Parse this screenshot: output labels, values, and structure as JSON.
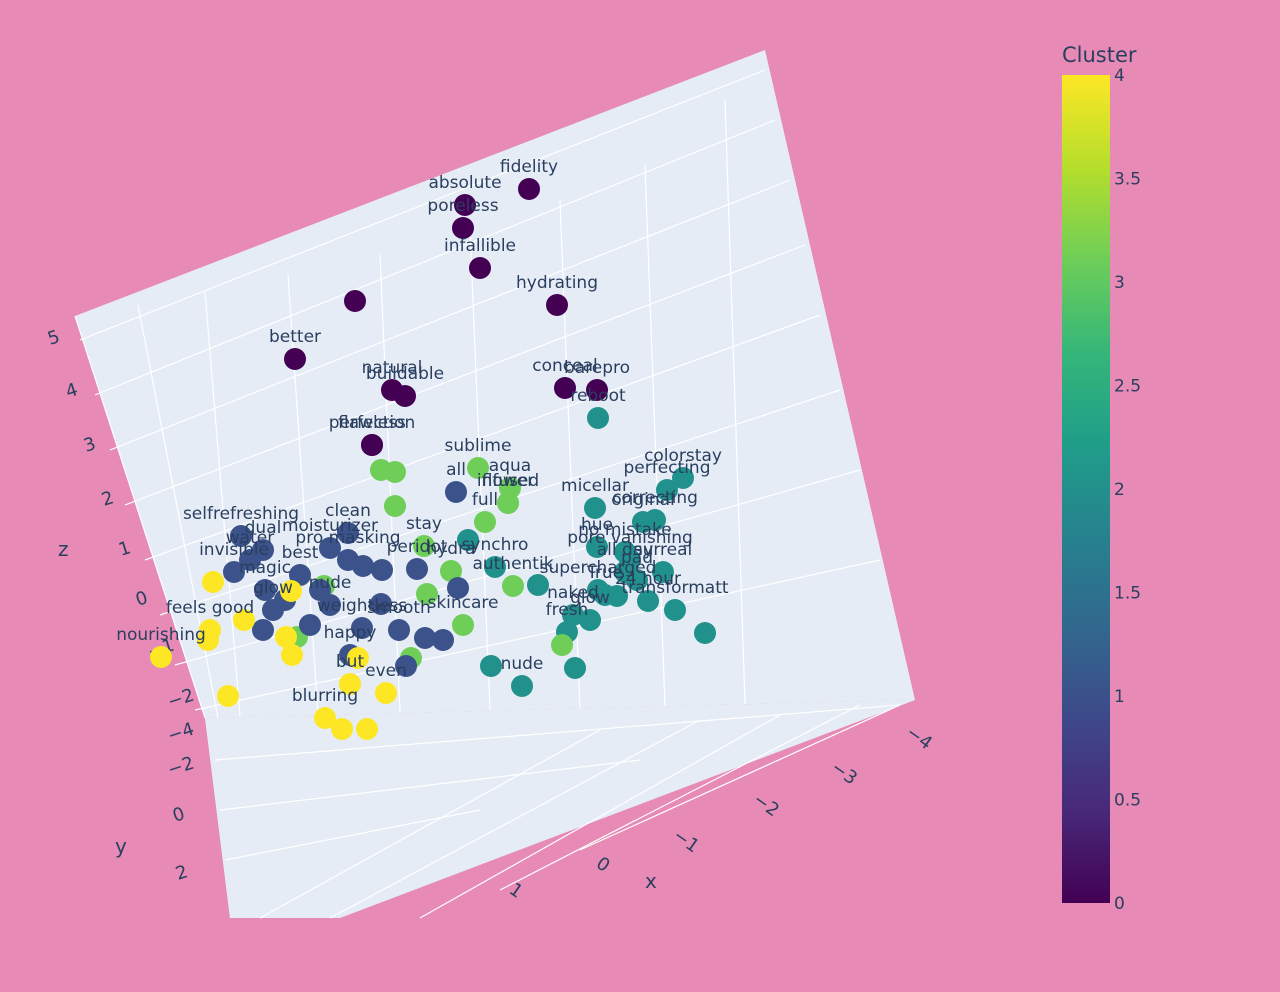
{
  "chart_data": {
    "type": "scatter3d",
    "axes": {
      "x": {
        "title": "x",
        "ticks": [
          "−4",
          "−3",
          "−2",
          "−1",
          "0",
          "1"
        ]
      },
      "y": {
        "title": "y",
        "ticks": [
          "−4",
          "−2",
          "0",
          "2"
        ]
      },
      "z": {
        "title": "z",
        "ticks": [
          "5",
          "4",
          "3",
          "2",
          "1",
          "0",
          "−1",
          "−2"
        ]
      }
    },
    "colorbar": {
      "title": "Cluster",
      "range": [
        0,
        4
      ],
      "ticks": [
        "4",
        "3.5",
        "3",
        "2.5",
        "2",
        "1.5",
        "1",
        "0.5",
        "0"
      ],
      "colorscale": [
        "#440154",
        "#482878",
        "#3e4989",
        "#31688e",
        "#26828e",
        "#1f9e89",
        "#35b779",
        "#6ece58",
        "#b5de2b",
        "#fde725"
      ]
    },
    "points": [
      {
        "label": "fidelity",
        "cluster": 0,
        "sx": 529,
        "sy": 189
      },
      {
        "label": "absolute",
        "cluster": 0,
        "sx": 465,
        "sy": 205
      },
      {
        "label": "poreless",
        "cluster": 0,
        "sx": 463,
        "sy": 228
      },
      {
        "label": "infallible",
        "cluster": 0,
        "sx": 480,
        "sy": 268
      },
      {
        "label": "hydrating",
        "cluster": 0,
        "sx": 557,
        "sy": 305
      },
      {
        "label": "",
        "cluster": 0,
        "sx": 355,
        "sy": 301
      },
      {
        "label": "better",
        "cluster": 0,
        "sx": 295,
        "sy": 359
      },
      {
        "label": "natural",
        "cluster": 0,
        "sx": 392,
        "sy": 390
      },
      {
        "label": "buildable",
        "cluster": 0,
        "sx": 405,
        "sy": 396
      },
      {
        "label": "conceal",
        "cluster": 0,
        "sx": 565,
        "sy": 388
      },
      {
        "label": "barepro",
        "cluster": 0,
        "sx": 597,
        "sy": 390
      },
      {
        "label": "flawless",
        "cluster": 0,
        "sx": 372,
        "sy": 445
      },
      {
        "label": "perfection",
        "cluster": 0,
        "sx": 372,
        "sy": 445
      },
      {
        "label": "reboot",
        "cluster": 2,
        "sx": 598,
        "sy": 418
      },
      {
        "label": "colorstay",
        "cluster": 2,
        "sx": 683,
        "sy": 478
      },
      {
        "label": "micellar",
        "cluster": 2,
        "sx": 595,
        "sy": 508
      },
      {
        "label": "perfecting",
        "cluster": 2,
        "sx": 667,
        "sy": 490
      },
      {
        "label": "correcting",
        "cluster": 2,
        "sx": 655,
        "sy": 520
      },
      {
        "label": "hue",
        "cluster": 2,
        "sx": 597,
        "sy": 547
      },
      {
        "label": "original",
        "cluster": 2,
        "sx": 643,
        "sy": 522
      },
      {
        "label": "no mistake",
        "cluster": 2,
        "sx": 625,
        "sy": 552
      },
      {
        "label": "pore vanishing",
        "cluster": 2,
        "sx": 630,
        "sy": 560
      },
      {
        "label": "surreal",
        "cluster": 2,
        "sx": 663,
        "sy": 572
      },
      {
        "label": "all day",
        "cluster": 2,
        "sx": 625,
        "sy": 572
      },
      {
        "label": "pad",
        "cluster": 2,
        "sx": 637,
        "sy": 580
      },
      {
        "label": "supercharged",
        "cluster": 2,
        "sx": 598,
        "sy": 590
      },
      {
        "label": "24 hour",
        "cluster": 2,
        "sx": 648,
        "sy": 601
      },
      {
        "label": "True",
        "cluster": 2,
        "sx": 605,
        "sy": 595
      },
      {
        "label": "glow",
        "cluster": 2,
        "sx": 590,
        "sy": 620
      },
      {
        "label": "naked",
        "cluster": 2,
        "sx": 573,
        "sy": 615
      },
      {
        "label": "fresh",
        "cluster": 2,
        "sx": 567,
        "sy": 632
      },
      {
        "label": "transformatt",
        "cluster": 2,
        "sx": 675,
        "sy": 610
      },
      {
        "label": "",
        "cluster": 2,
        "sx": 705,
        "sy": 633
      },
      {
        "label": "synchro",
        "cluster": 2,
        "sx": 495,
        "sy": 567
      },
      {
        "label": "",
        "cluster": 2,
        "sx": 538,
        "sy": 585
      },
      {
        "label": "nude",
        "cluster": 2,
        "sx": 522,
        "sy": 686
      },
      {
        "label": "",
        "cluster": 2,
        "sx": 491,
        "sy": 666
      },
      {
        "label": "",
        "cluster": 2,
        "sx": 575,
        "sy": 668
      },
      {
        "label": "",
        "cluster": 2,
        "sx": 617,
        "sy": 596
      },
      {
        "label": "",
        "cluster": 2,
        "sx": 468,
        "sy": 540
      },
      {
        "label": "sublime",
        "cluster": 3,
        "sx": 478,
        "sy": 468
      },
      {
        "label": "aqua",
        "cluster": 3,
        "sx": 510,
        "sy": 488
      },
      {
        "label": "flower",
        "cluster": 3,
        "sx": 508,
        "sy": 503
      },
      {
        "label": "infused",
        "cluster": 3,
        "sx": 508,
        "sy": 503
      },
      {
        "label": "",
        "cluster": 3,
        "sx": 381,
        "sy": 470
      },
      {
        "label": "",
        "cluster": 3,
        "sx": 395,
        "sy": 472
      },
      {
        "label": "",
        "cluster": 3,
        "sx": 395,
        "sy": 506
      },
      {
        "label": "full",
        "cluster": 3,
        "sx": 485,
        "sy": 522
      },
      {
        "label": "stay",
        "cluster": 3,
        "sx": 424,
        "sy": 546
      },
      {
        "label": "hydra",
        "cluster": 3,
        "sx": 451,
        "sy": 571
      },
      {
        "label": "authentik",
        "cluster": 3,
        "sx": 513,
        "sy": 586
      },
      {
        "label": "",
        "cluster": 3,
        "sx": 427,
        "sy": 594
      },
      {
        "label": "skincare",
        "cluster": 3,
        "sx": 463,
        "sy": 625
      },
      {
        "label": "",
        "cluster": 3,
        "sx": 562,
        "sy": 645
      },
      {
        "label": "",
        "cluster": 3,
        "sx": 411,
        "sy": 658
      },
      {
        "label": "",
        "cluster": 3,
        "sx": 324,
        "sy": 586
      },
      {
        "label": "",
        "cluster": 3,
        "sx": 297,
        "sy": 637
      },
      {
        "label": "all",
        "cluster": 1,
        "sx": 456,
        "sy": 492
      },
      {
        "label": "selfrefreshing",
        "cluster": 1,
        "sx": 241,
        "sy": 536
      },
      {
        "label": "clean",
        "cluster": 1,
        "sx": 348,
        "sy": 533
      },
      {
        "label": "moisturizer",
        "cluster": 1,
        "sx": 330,
        "sy": 548
      },
      {
        "label": "dual",
        "cluster": 1,
        "sx": 263,
        "sy": 550
      },
      {
        "label": "pro masking",
        "cluster": 1,
        "sx": 348,
        "sy": 560
      },
      {
        "label": "invisible",
        "cluster": 1,
        "sx": 234,
        "sy": 572
      },
      {
        "label": "water",
        "cluster": 1,
        "sx": 250,
        "sy": 560
      },
      {
        "label": "best",
        "cluster": 1,
        "sx": 300,
        "sy": 575
      },
      {
        "label": "peridot",
        "cluster": 1,
        "sx": 417,
        "sy": 569
      },
      {
        "label": "",
        "cluster": 1,
        "sx": 382,
        "sy": 570
      },
      {
        "label": "",
        "cluster": 1,
        "sx": 363,
        "sy": 566
      },
      {
        "label": "magic",
        "cluster": 1,
        "sx": 265,
        "sy": 590
      },
      {
        "label": "glow",
        "cluster": 1,
        "sx": 273,
        "sy": 610
      },
      {
        "label": "nude",
        "cluster": 1,
        "sx": 330,
        "sy": 605
      },
      {
        "label": "",
        "cluster": 1,
        "sx": 458,
        "sy": 588
      },
      {
        "label": "",
        "cluster": 1,
        "sx": 381,
        "sy": 604
      },
      {
        "label": "smooth",
        "cluster": 1,
        "sx": 399,
        "sy": 630
      },
      {
        "label": "weightless",
        "cluster": 1,
        "sx": 362,
        "sy": 628
      },
      {
        "label": "",
        "cluster": 1,
        "sx": 425,
        "sy": 638
      },
      {
        "label": "",
        "cluster": 1,
        "sx": 443,
        "sy": 640
      },
      {
        "label": "",
        "cluster": 1,
        "sx": 263,
        "sy": 630
      },
      {
        "label": "",
        "cluster": 1,
        "sx": 310,
        "sy": 625
      },
      {
        "label": "happy",
        "cluster": 1,
        "sx": 350,
        "sy": 655
      },
      {
        "label": "",
        "cluster": 1,
        "sx": 406,
        "sy": 666
      },
      {
        "label": "",
        "cluster": 1,
        "sx": 285,
        "sy": 600
      },
      {
        "label": "",
        "cluster": 1,
        "sx": 320,
        "sy": 590
      },
      {
        "label": "nourishing",
        "cluster": 4,
        "sx": 161,
        "sy": 657
      },
      {
        "label": "feels good",
        "cluster": 4,
        "sx": 210,
        "sy": 630
      },
      {
        "label": "",
        "cluster": 4,
        "sx": 208,
        "sy": 640
      },
      {
        "label": "",
        "cluster": 4,
        "sx": 213,
        "sy": 582
      },
      {
        "label": "",
        "cluster": 4,
        "sx": 244,
        "sy": 620
      },
      {
        "label": "",
        "cluster": 4,
        "sx": 291,
        "sy": 591
      },
      {
        "label": "",
        "cluster": 4,
        "sx": 286,
        "sy": 637
      },
      {
        "label": "",
        "cluster": 4,
        "sx": 292,
        "sy": 655
      },
      {
        "label": "",
        "cluster": 4,
        "sx": 358,
        "sy": 658
      },
      {
        "label": "even",
        "cluster": 4,
        "sx": 386,
        "sy": 693
      },
      {
        "label": "but",
        "cluster": 4,
        "sx": 350,
        "sy": 684
      },
      {
        "label": "blurring",
        "cluster": 4,
        "sx": 325,
        "sy": 718
      },
      {
        "label": "",
        "cluster": 4,
        "sx": 342,
        "sy": 729
      },
      {
        "label": "",
        "cluster": 4,
        "sx": 367,
        "sy": 729
      },
      {
        "label": "",
        "cluster": 4,
        "sx": 228,
        "sy": 696
      }
    ]
  }
}
